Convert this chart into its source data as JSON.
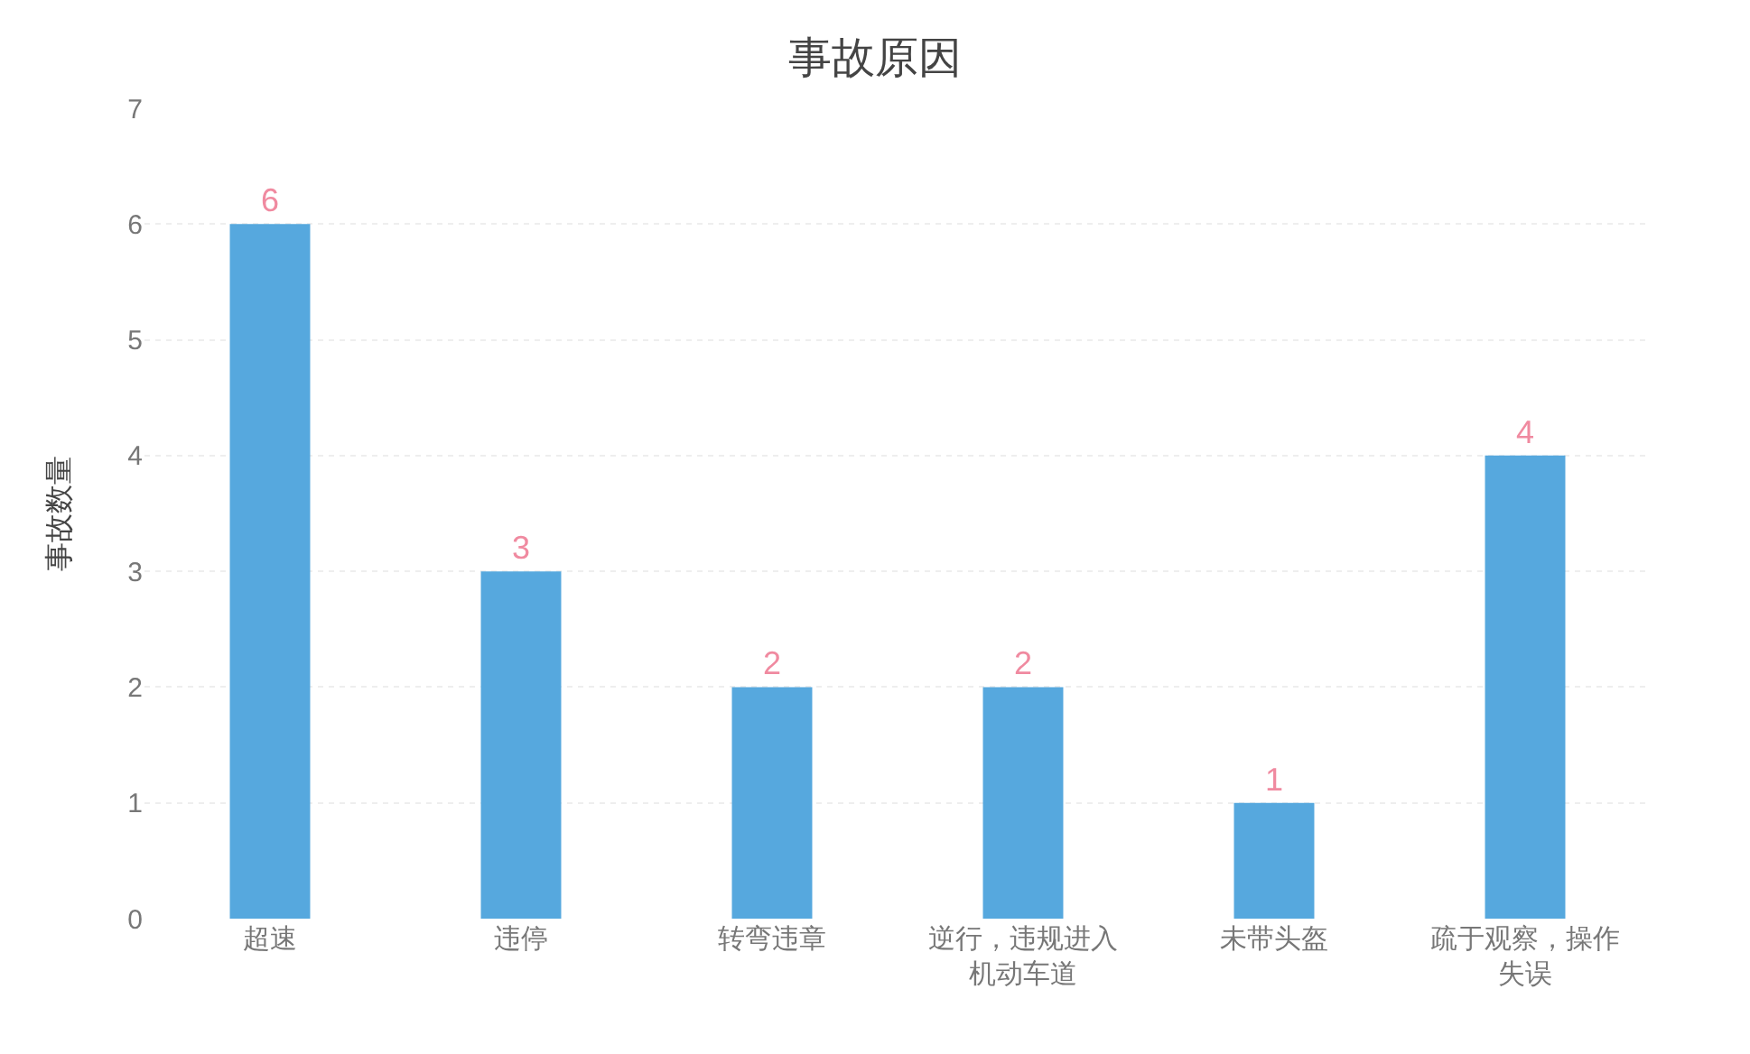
{
  "chart_data": {
    "type": "bar",
    "title": "事故原因",
    "ylabel": "事故数量",
    "categories": [
      "超速",
      "违停",
      "转弯违章",
      "逆行，违规进入机动车道",
      "未带头盔",
      "疏于观察，操作失误"
    ],
    "values": [
      6,
      3,
      2,
      2,
      1,
      4
    ],
    "color": "#56a8de",
    "ylim": [
      0,
      7
    ],
    "yticks": [
      0,
      1,
      2,
      3,
      4,
      5,
      6,
      7
    ],
    "grid": "y",
    "data_labels": true
  }
}
